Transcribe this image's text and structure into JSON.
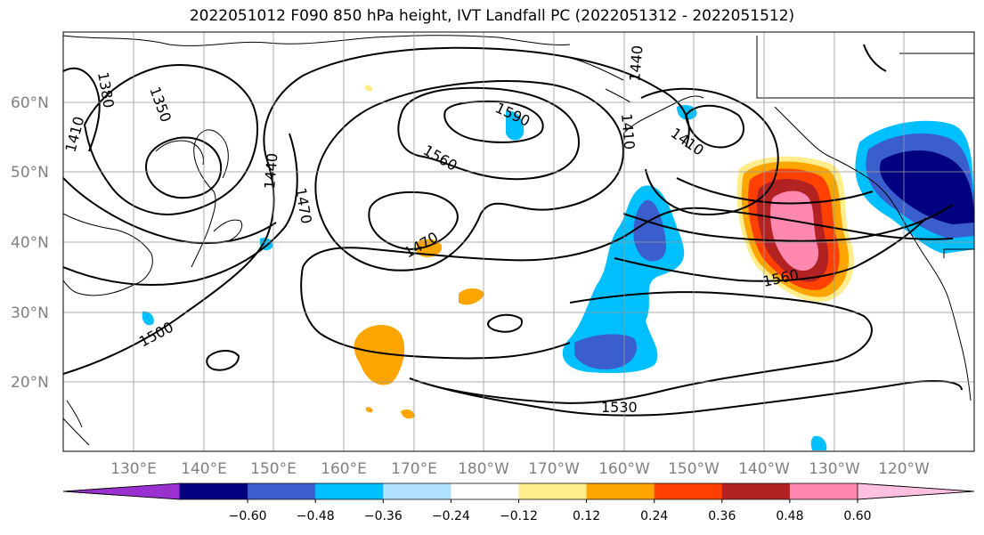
{
  "title": "2022051012 F090 850 hPa height, IVT Landfall PC (2022051312 - 2022051512)",
  "lat_labels": [
    "60°N",
    "50°N",
    "40°N",
    "30°N",
    "20°N"
  ],
  "lon_labels": [
    "130°E",
    "140°E",
    "150°E",
    "160°E",
    "170°E",
    "180°W",
    "170°W",
    "160°W",
    "150°W",
    "140°W",
    "130°W",
    "120°W"
  ],
  "contour_labels": [
    "1380",
    "1350",
    "1410",
    "1440",
    "1470",
    "1590",
    "1560",
    "1470",
    "1500",
    "1530",
    "1410",
    "1410",
    "1560",
    "1440"
  ],
  "colorbar": {
    "labels": [
      "−0.60",
      "−0.48",
      "−0.36",
      "−0.24",
      "−0.12",
      "0.12",
      "0.24",
      "0.36",
      "0.48",
      "0.60"
    ],
    "colors": [
      "#9b30d0",
      "#000080",
      "#3a5fcd",
      "#00bfff",
      "#b0e2ff",
      "#ffffff",
      "#ffec8b",
      "#ffa500",
      "#ff4000",
      "#b22222",
      "#ff88b0",
      "#ffc0e0"
    ]
  }
}
